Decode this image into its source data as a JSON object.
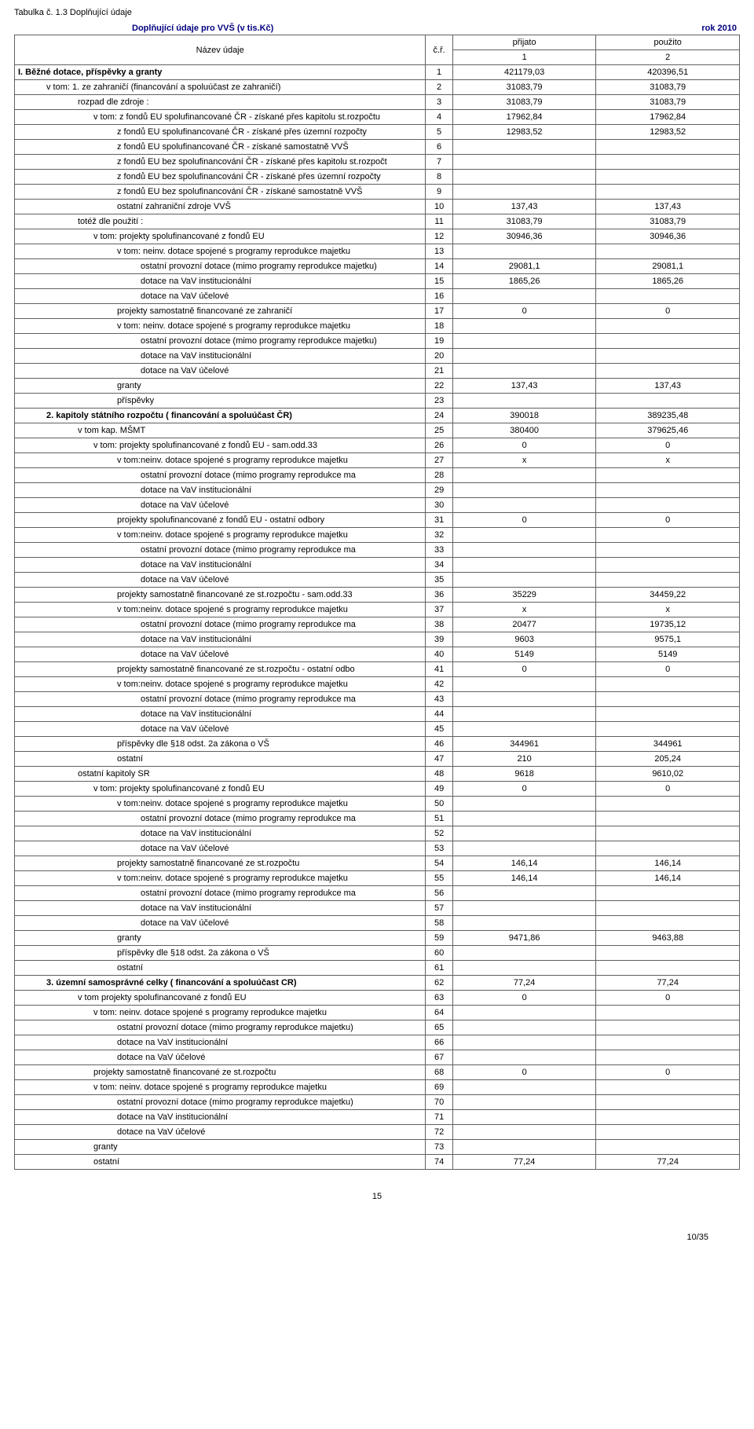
{
  "table_caption": "Tabulka č. 1.3 Doplňující údaje",
  "heading_left": "Doplňující údaje pro VVŠ (v tis.Kč)",
  "heading_right": "rok 2010",
  "header": {
    "name": "Název údaje",
    "cr": "č.ř.",
    "c1_top": "přijato",
    "c1_bot": "1",
    "c2_top": "použito",
    "c2_bot": "2"
  },
  "rows": [
    {
      "label": "I. Běžné dotace, příspěvky a granty",
      "n": "1",
      "v1": "421179,03",
      "v2": "420396,51",
      "indent": 0,
      "bold": true
    },
    {
      "label": "v tom: 1. ze zahraničí (financování a spoluúčast ze zahraničí)",
      "n": "2",
      "v1": "31083,79",
      "v2": "31083,79",
      "indent": 1
    },
    {
      "label": "rozpad dle zdroje :",
      "n": "3",
      "v1": "31083,79",
      "v2": "31083,79",
      "indent": 2
    },
    {
      "label": "v tom: z fondů EU spolufinancované ČR - získané přes kapitolu st.rozpočtu",
      "n": "4",
      "v1": "17962,84",
      "v2": "17962,84",
      "indent": 3
    },
    {
      "label": "z fondů EU spolufinancované ČR - získané přes územní rozpočty",
      "n": "5",
      "v1": "12983,52",
      "v2": "12983,52",
      "indent": 4
    },
    {
      "label": "z fondů EU spolufinancované ČR - získané samostatně VVŠ",
      "n": "6",
      "v1": "",
      "v2": "",
      "indent": 4
    },
    {
      "label": "z fondů EU bez spolufinancování ČR - získané přes kapitolu st.rozpočt",
      "n": "7",
      "v1": "",
      "v2": "",
      "indent": 4
    },
    {
      "label": "z fondů EU bez spolufinancování ČR - získané přes územní rozpočty",
      "n": "8",
      "v1": "",
      "v2": "",
      "indent": 4
    },
    {
      "label": "z fondů EU bez spolufinancování ČR - získané samostatně VVŠ",
      "n": "9",
      "v1": "",
      "v2": "",
      "indent": 4
    },
    {
      "label": "ostatní zahraniční zdroje VVŠ",
      "n": "10",
      "v1": "137,43",
      "v2": "137,43",
      "indent": 4
    },
    {
      "label": "totéž dle použití :",
      "n": "11",
      "v1": "31083,79",
      "v2": "31083,79",
      "indent": 2
    },
    {
      "label": "v tom: projekty spolufinancované z fondů EU",
      "n": "12",
      "v1": "30946,36",
      "v2": "30946,36",
      "indent": 3
    },
    {
      "label": "v tom: neinv. dotace spojené s programy reprodukce majetku",
      "n": "13",
      "v1": "",
      "v2": "",
      "indent": 4
    },
    {
      "label": "ostatní provozní dotace (mimo programy reprodukce majetku)",
      "n": "14",
      "v1": "29081,1",
      "v2": "29081,1",
      "indent": 5
    },
    {
      "label": "dotace na VaV institucionální",
      "n": "15",
      "v1": "1865,26",
      "v2": "1865,26",
      "indent": 5
    },
    {
      "label": "dotace na VaV účelové",
      "n": "16",
      "v1": "",
      "v2": "",
      "indent": 5
    },
    {
      "label": "projekty samostatně financované ze zahraničí",
      "n": "17",
      "v1": "0",
      "v2": "0",
      "indent": 4
    },
    {
      "label": "v tom: neinv. dotace spojené s programy reprodukce majetku",
      "n": "18",
      "v1": "",
      "v2": "",
      "indent": 4
    },
    {
      "label": "ostatní provozní dotace (mimo programy reprodukce majetku)",
      "n": "19",
      "v1": "",
      "v2": "",
      "indent": 5
    },
    {
      "label": "dotace na VaV institucionální",
      "n": "20",
      "v1": "",
      "v2": "",
      "indent": 5
    },
    {
      "label": "dotace na VaV účelové",
      "n": "21",
      "v1": "",
      "v2": "",
      "indent": 5
    },
    {
      "label": "granty",
      "n": "22",
      "v1": "137,43",
      "v2": "137,43",
      "indent": 4
    },
    {
      "label": "příspěvky",
      "n": "23",
      "v1": "",
      "v2": "",
      "indent": 4
    },
    {
      "label": "2. kapitoly státního rozpočtu ( financování a spoluúčast ČR)",
      "n": "24",
      "v1": "390018",
      "v2": "389235,48",
      "indent": 1,
      "bold": true
    },
    {
      "label": "v tom kap. MŠMT",
      "n": "25",
      "v1": "380400",
      "v2": "379625,46",
      "indent": 2
    },
    {
      "label": "v tom: projekty spolufinancované z fondů EU - sam.odd.33",
      "n": "26",
      "v1": "0",
      "v2": "0",
      "indent": 3
    },
    {
      "label": "v tom:neinv. dotace spojené s programy reprodukce majetku",
      "n": "27",
      "v1": "x",
      "v2": "x",
      "indent": 4
    },
    {
      "label": "ostatní provozní dotace (mimo programy reprodukce ma",
      "n": "28",
      "v1": "",
      "v2": "",
      "indent": 5
    },
    {
      "label": "dotace na VaV institucionální",
      "n": "29",
      "v1": "",
      "v2": "",
      "indent": 5
    },
    {
      "label": "dotace na VaV účelové",
      "n": "30",
      "v1": "",
      "v2": "",
      "indent": 5
    },
    {
      "label": "projekty spolufinancované z fondů EU - ostatní odbory",
      "n": "31",
      "v1": "0",
      "v2": "0",
      "indent": 4
    },
    {
      "label": "v tom:neinv. dotace spojené s programy reprodukce majetku",
      "n": "32",
      "v1": "",
      "v2": "",
      "indent": 4
    },
    {
      "label": "ostatní provozní dotace (mimo programy reprodukce ma",
      "n": "33",
      "v1": "",
      "v2": "",
      "indent": 5
    },
    {
      "label": "dotace na VaV institucionální",
      "n": "34",
      "v1": "",
      "v2": "",
      "indent": 5
    },
    {
      "label": "dotace na VaV účelové",
      "n": "35",
      "v1": "",
      "v2": "",
      "indent": 5
    },
    {
      "label": "projekty samostatně financované ze st.rozpočtu - sam.odd.33",
      "n": "36",
      "v1": "35229",
      "v2": "34459,22",
      "indent": 4
    },
    {
      "label": "v tom:neinv. dotace spojené s programy reprodukce majetku",
      "n": "37",
      "v1": "x",
      "v2": "x",
      "indent": 4
    },
    {
      "label": "ostatní provozní dotace (mimo programy reprodukce ma",
      "n": "38",
      "v1": "20477",
      "v2": "19735,12",
      "indent": 5
    },
    {
      "label": "dotace na VaV institucionální",
      "n": "39",
      "v1": "9603",
      "v2": "9575,1",
      "indent": 5
    },
    {
      "label": "dotace na VaV účelové",
      "n": "40",
      "v1": "5149",
      "v2": "5149",
      "indent": 5
    },
    {
      "label": "projekty samostatně financované ze st.rozpočtu - ostatní odbo",
      "n": "41",
      "v1": "0",
      "v2": "0",
      "indent": 4
    },
    {
      "label": "v tom:neinv. dotace spojené s programy reprodukce majetku",
      "n": "42",
      "v1": "",
      "v2": "",
      "indent": 4
    },
    {
      "label": "ostatní provozní dotace (mimo programy reprodukce ma",
      "n": "43",
      "v1": "",
      "v2": "",
      "indent": 5
    },
    {
      "label": "dotace na VaV institucionální",
      "n": "44",
      "v1": "",
      "v2": "",
      "indent": 5
    },
    {
      "label": "dotace na VaV účelové",
      "n": "45",
      "v1": "",
      "v2": "",
      "indent": 5
    },
    {
      "label": "příspěvky dle §18 odst. 2a zákona o VŠ",
      "n": "46",
      "v1": "344961",
      "v2": "344961",
      "indent": 4
    },
    {
      "label": "ostatní",
      "n": "47",
      "v1": "210",
      "v2": "205,24",
      "indent": 4
    },
    {
      "label": "ostatní kapitoly SR",
      "n": "48",
      "v1": "9618",
      "v2": "9610,02",
      "indent": 2
    },
    {
      "label": "v tom: projekty spolufinancované z fondů EU",
      "n": "49",
      "v1": "0",
      "v2": "0",
      "indent": 3
    },
    {
      "label": "v tom:neinv. dotace spojené s programy reprodukce majetku",
      "n": "50",
      "v1": "",
      "v2": "",
      "indent": 4
    },
    {
      "label": "ostatní provozní dotace (mimo programy reprodukce ma",
      "n": "51",
      "v1": "",
      "v2": "",
      "indent": 5
    },
    {
      "label": "dotace na VaV institucionální",
      "n": "52",
      "v1": "",
      "v2": "",
      "indent": 5
    },
    {
      "label": "dotace na VaV účelové",
      "n": "53",
      "v1": "",
      "v2": "",
      "indent": 5
    },
    {
      "label": "projekty samostatně financované ze st.rozpočtu",
      "n": "54",
      "v1": "146,14",
      "v2": "146,14",
      "indent": 4
    },
    {
      "label": "v tom:neinv. dotace spojené s programy reprodukce majetku",
      "n": "55",
      "v1": "146,14",
      "v2": "146,14",
      "indent": 4
    },
    {
      "label": "ostatní provozní dotace (mimo programy reprodukce ma",
      "n": "56",
      "v1": "",
      "v2": "",
      "indent": 5
    },
    {
      "label": "dotace na VaV institucionální",
      "n": "57",
      "v1": "",
      "v2": "",
      "indent": 5
    },
    {
      "label": "dotace na VaV účelové",
      "n": "58",
      "v1": "",
      "v2": "",
      "indent": 5
    },
    {
      "label": "granty",
      "n": "59",
      "v1": "9471,86",
      "v2": "9463,88",
      "indent": 4
    },
    {
      "label": "příspěvky dle §18 odst. 2a zákona o VŠ",
      "n": "60",
      "v1": "",
      "v2": "",
      "indent": 4
    },
    {
      "label": "ostatní",
      "n": "61",
      "v1": "",
      "v2": "",
      "indent": 4
    },
    {
      "label": "3. územní samosprávné celky ( financování a spoluúčast CR)",
      "n": "62",
      "v1": "77,24",
      "v2": "77,24",
      "indent": 1,
      "bold": true
    },
    {
      "label": "v tom  projekty spolufinancované z fondů EU",
      "n": "63",
      "v1": "0",
      "v2": "0",
      "indent": 2
    },
    {
      "label": "v tom: neinv. dotace spojené s programy reprodukce majetku",
      "n": "64",
      "v1": "",
      "v2": "",
      "indent": 3
    },
    {
      "label": "ostatní provozní dotace (mimo programy reprodukce majetku)",
      "n": "65",
      "v1": "",
      "v2": "",
      "indent": 4
    },
    {
      "label": "dotace na VaV institucionální",
      "n": "66",
      "v1": "",
      "v2": "",
      "indent": 4
    },
    {
      "label": "dotace na VaV účelové",
      "n": "67",
      "v1": "",
      "v2": "",
      "indent": 4
    },
    {
      "label": "projekty samostatně financované ze st.rozpočtu",
      "n": "68",
      "v1": "0",
      "v2": "0",
      "indent": 3
    },
    {
      "label": "v tom: neinv. dotace spojené s programy reprodukce majetku",
      "n": "69",
      "v1": "",
      "v2": "",
      "indent": 3
    },
    {
      "label": "ostatní provozní dotace (mimo programy reprodukce majetku)",
      "n": "70",
      "v1": "",
      "v2": "",
      "indent": 4
    },
    {
      "label": "dotace na VaV institucionální",
      "n": "71",
      "v1": "",
      "v2": "",
      "indent": 4
    },
    {
      "label": "dotace na VaV účelové",
      "n": "72",
      "v1": "",
      "v2": "",
      "indent": 4
    },
    {
      "label": "granty",
      "n": "73",
      "v1": "",
      "v2": "",
      "indent": 3
    },
    {
      "label": "ostatní",
      "n": "74",
      "v1": "77,24",
      "v2": "77,24",
      "indent": 3
    }
  ],
  "page_number": "15",
  "footer_number": "10/35"
}
